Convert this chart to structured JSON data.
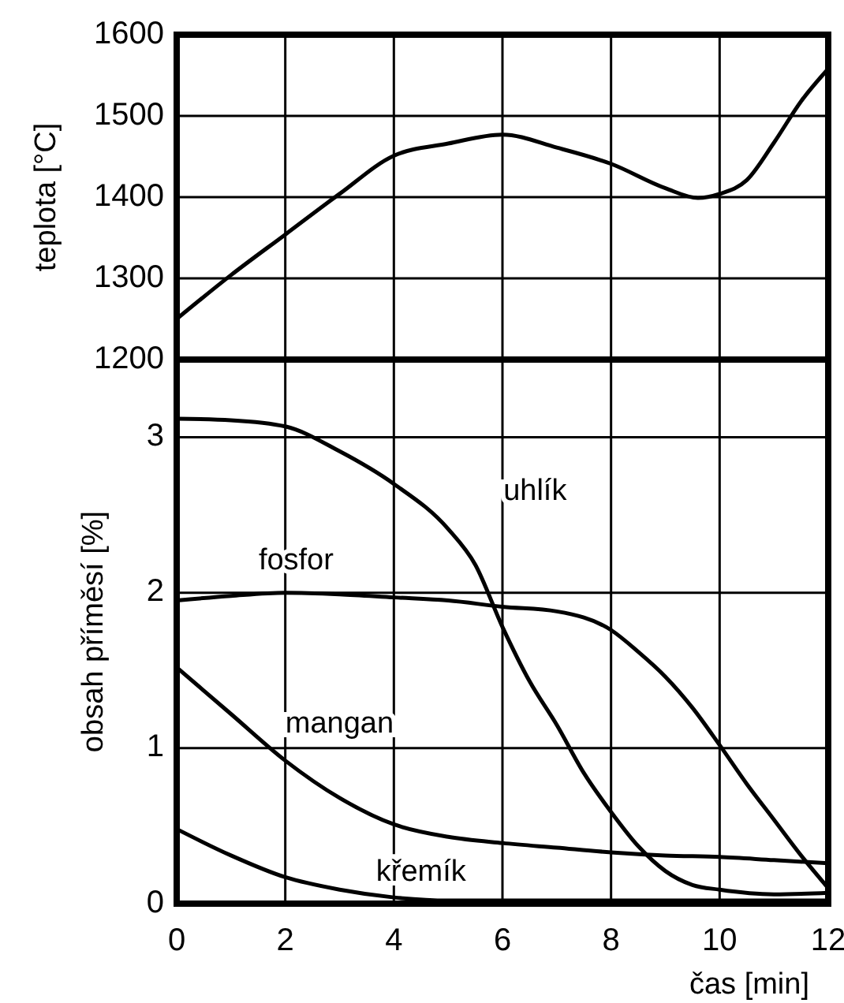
{
  "chart_data": [
    {
      "type": "line",
      "ylabel": "teplota [°C]",
      "xlim": [
        0,
        12
      ],
      "xticks": [
        0,
        2,
        4,
        6,
        8,
        10,
        12
      ],
      "ylim": [
        1200,
        1600
      ],
      "yticks": [
        1200,
        1300,
        1400,
        1500,
        1600
      ],
      "grid": true,
      "tick_labels": "y",
      "line_style": "solid",
      "series": [
        {
          "color": "#000000",
          "x": [
            0,
            1,
            2,
            3,
            4,
            5,
            6,
            7,
            8,
            9,
            9.6,
            10,
            10.5,
            11,
            11.5,
            12
          ],
          "values": [
            1250,
            1304,
            1354,
            1404,
            1451,
            1466,
            1477,
            1461,
            1441,
            1411,
            1399,
            1404,
            1421,
            1467,
            1518,
            1558
          ]
        }
      ]
    },
    {
      "type": "line",
      "xlabel": "čas [min]",
      "ylabel": "obsah příměsí [%]",
      "xlim": [
        0,
        12
      ],
      "xticks": [
        0,
        2,
        4,
        6,
        8,
        10,
        12
      ],
      "ylim": [
        0,
        3.5
      ],
      "yticks": [
        0,
        1,
        2,
        3
      ],
      "grid": true,
      "line_style": "solid",
      "series": [
        {
          "name": "uhlík",
          "color": "#000000",
          "x": [
            0,
            1,
            2,
            3,
            4,
            5,
            5.5,
            6,
            6.5,
            7,
            7.5,
            8,
            8.5,
            9,
            9.5,
            10,
            11,
            12
          ],
          "values": [
            3.12,
            3.11,
            3.07,
            2.91,
            2.7,
            2.41,
            2.18,
            1.78,
            1.43,
            1.15,
            0.84,
            0.59,
            0.37,
            0.21,
            0.12,
            0.09,
            0.06,
            0.07
          ]
        },
        {
          "name": "fosfor",
          "color": "#000000",
          "x": [
            0,
            1,
            2,
            3,
            4,
            5,
            6,
            7,
            8,
            8.5,
            9,
            9.5,
            10,
            10.5,
            11,
            11.5,
            12
          ],
          "values": [
            1.95,
            1.98,
            2.0,
            1.99,
            1.97,
            1.95,
            1.91,
            1.88,
            1.76,
            1.62,
            1.46,
            1.26,
            1.02,
            0.77,
            0.54,
            0.31,
            0.1
          ]
        },
        {
          "name": "mangan",
          "color": "#000000",
          "x": [
            0,
            1,
            2,
            3,
            4,
            5,
            6,
            7,
            8,
            9,
            10,
            11,
            12
          ],
          "values": [
            1.52,
            1.22,
            0.92,
            0.68,
            0.51,
            0.43,
            0.39,
            0.36,
            0.33,
            0.31,
            0.3,
            0.28,
            0.26
          ]
        },
        {
          "name": "křemík",
          "color": "#000000",
          "x": [
            0,
            1,
            2,
            3,
            4,
            5,
            6,
            8,
            10,
            12
          ],
          "values": [
            0.48,
            0.31,
            0.17,
            0.09,
            0.04,
            0.02,
            0.02,
            0.02,
            0.02,
            0.02
          ]
        }
      ]
    }
  ]
}
